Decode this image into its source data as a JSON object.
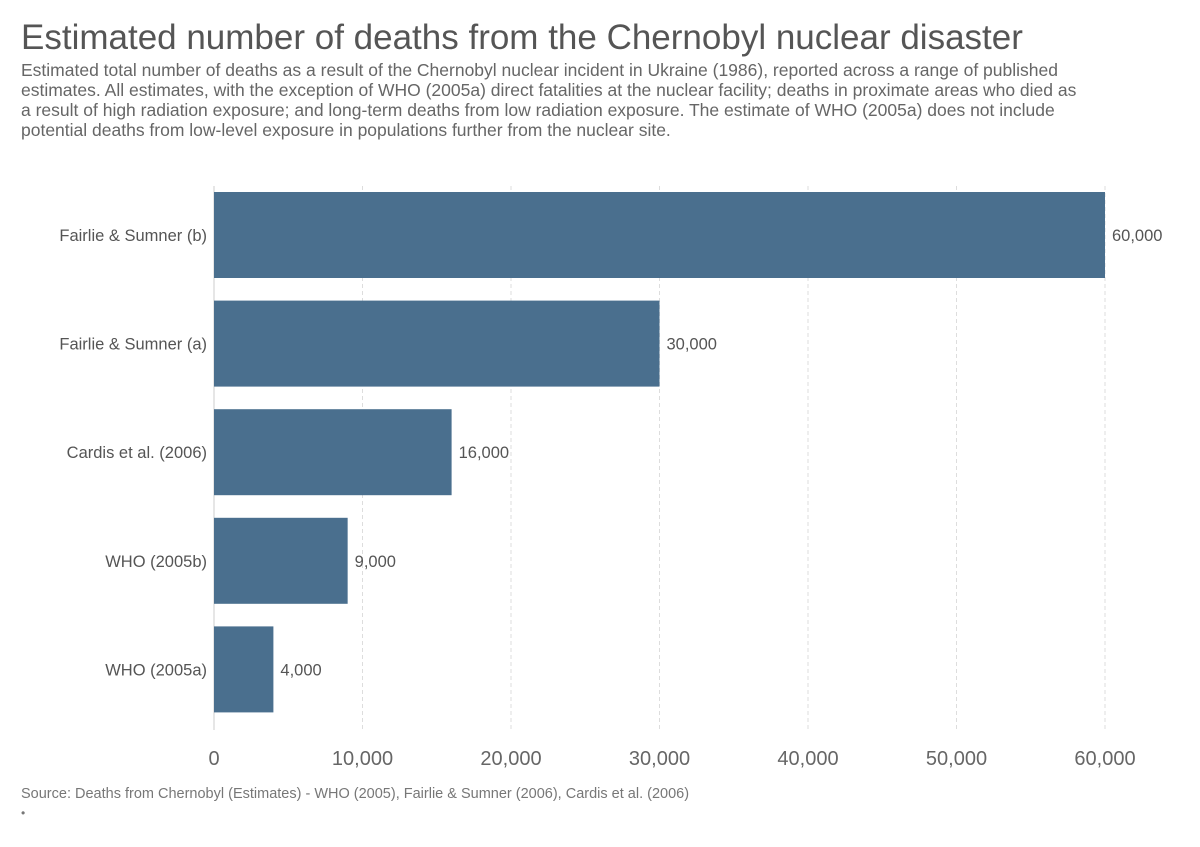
{
  "title": "Estimated number of deaths from the Chernobyl nuclear disaster",
  "subtitle": "Estimated total number of deaths as a result of the Chernobyl nuclear incident in Ukraine (1986), reported across a range of published estimates. All estimates, with the exception of WHO (2005a) direct fatalities at the nuclear facility; deaths in proximate areas who died as a result of high radiation exposure; and long-term deaths from low radiation exposure. The estimate of WHO (2005a) does not include potential deaths from low-level exposure in populations further from the nuclear site.",
  "source": "Source: Deaths from Chernobyl (Estimates) - WHO (2005), Fairlie & Sumner (2006), Cardis et al. (2006)",
  "bullet": "•",
  "chart_data": {
    "type": "bar",
    "orientation": "horizontal",
    "categories": [
      "Fairlie & Sumner (b)",
      "Fairlie & Sumner (a)",
      "Cardis et al. (2006)",
      "WHO (2005b)",
      "WHO (2005a)"
    ],
    "values": [
      60000,
      30000,
      16000,
      9000,
      4000
    ],
    "value_labels": [
      "60,000",
      "30,000",
      "16,000",
      "9,000",
      "4,000"
    ],
    "xlim": [
      0,
      60000
    ],
    "xticks": [
      0,
      10000,
      20000,
      30000,
      40000,
      50000,
      60000
    ],
    "xtick_labels": [
      "0",
      "10,000",
      "20,000",
      "30,000",
      "40,000",
      "50,000",
      "60,000"
    ],
    "grid": "vertical dashed",
    "bar_color": "#4a6f8e",
    "xlabel": "",
    "ylabel": ""
  }
}
